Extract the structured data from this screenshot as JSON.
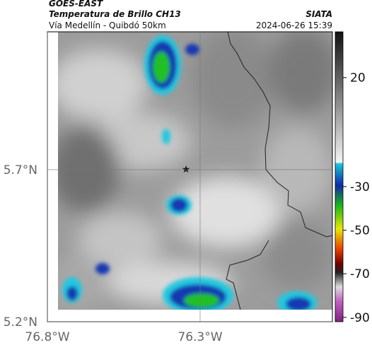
{
  "header": {
    "source": "GOES-EAST",
    "title": "Temperatura de Brillo CH13",
    "subtitle": "Vía Medellín - Quibdó 50km",
    "agency": "SIATA",
    "timestamp": "2024-06-26 15:39"
  },
  "map": {
    "lonlim": [
      -76.8,
      -75.867
    ],
    "latlim": [
      5.2,
      6.153
    ],
    "lon_ticks": [
      {
        "value": -76.8,
        "label": "76.8°W"
      },
      {
        "value": -76.3,
        "label": "76.3°W"
      }
    ],
    "lat_ticks": [
      {
        "value": 5.7,
        "label": "5.7°N"
      },
      {
        "value": 5.2,
        "label": "5.2°N"
      }
    ]
  },
  "colorbar": {
    "range": [
      41,
      -92
    ],
    "ticks": [
      20,
      -30,
      -50,
      -70,
      -90
    ]
  }
}
